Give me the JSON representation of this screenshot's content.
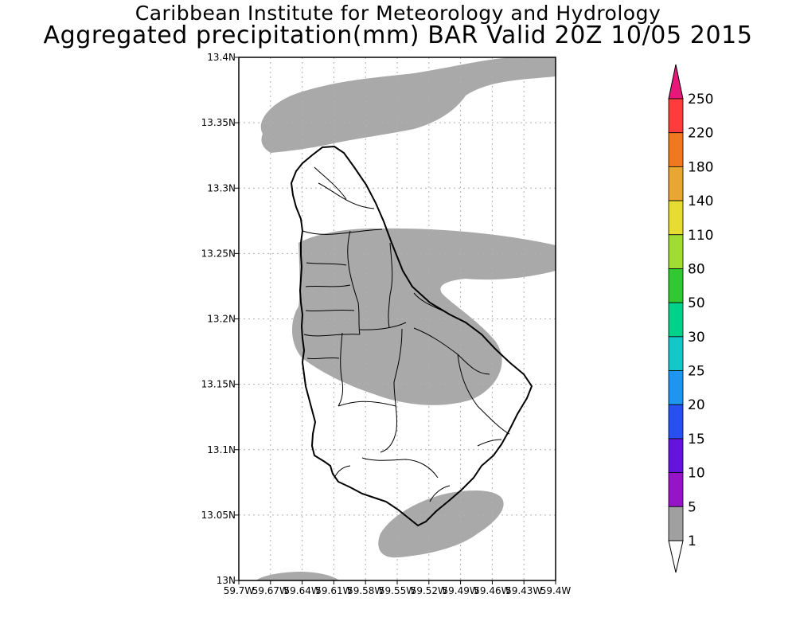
{
  "title": {
    "line1": "Caribbean Institute for Meteorology and Hydrology",
    "line2": "Aggregated precipitation(mm) BAR Valid 20Z 10/05 2015"
  },
  "map": {
    "lat_ticks": [
      "13.4N",
      "13.35N",
      "13.3N",
      "13.25N",
      "13.2N",
      "13.15N",
      "13.1N",
      "13.05N",
      "13N"
    ],
    "lon_ticks": [
      "59.7W",
      "59.67W",
      "59.64W",
      "59.61W",
      "59.58W",
      "59.55W",
      "59.52W",
      "59.49W",
      "59.46W",
      "59.43W",
      "59.4W"
    ],
    "lat_range": [
      13.0,
      13.4
    ],
    "lon_range": [
      -59.7,
      -59.4
    ],
    "grid": true,
    "precip_fill_color": "#a9a9a9",
    "precip_fill_class": "1-5 mm"
  },
  "legend": {
    "levels": [
      "250",
      "220",
      "180",
      "140",
      "110",
      "80",
      "50",
      "30",
      "25",
      "20",
      "15",
      "10",
      "5",
      "1"
    ],
    "top_arrow_color": "#e8187a",
    "bottom_arrow_color": "#ffffff",
    "colors": [
      "#ff3c3c",
      "#f07820",
      "#e8a632",
      "#e6dc32",
      "#a0dc32",
      "#32c832",
      "#00d28c",
      "#14c8c8",
      "#1e96f0",
      "#2850f0",
      "#6414dc",
      "#9614c8",
      "#a0a0a0"
    ]
  }
}
